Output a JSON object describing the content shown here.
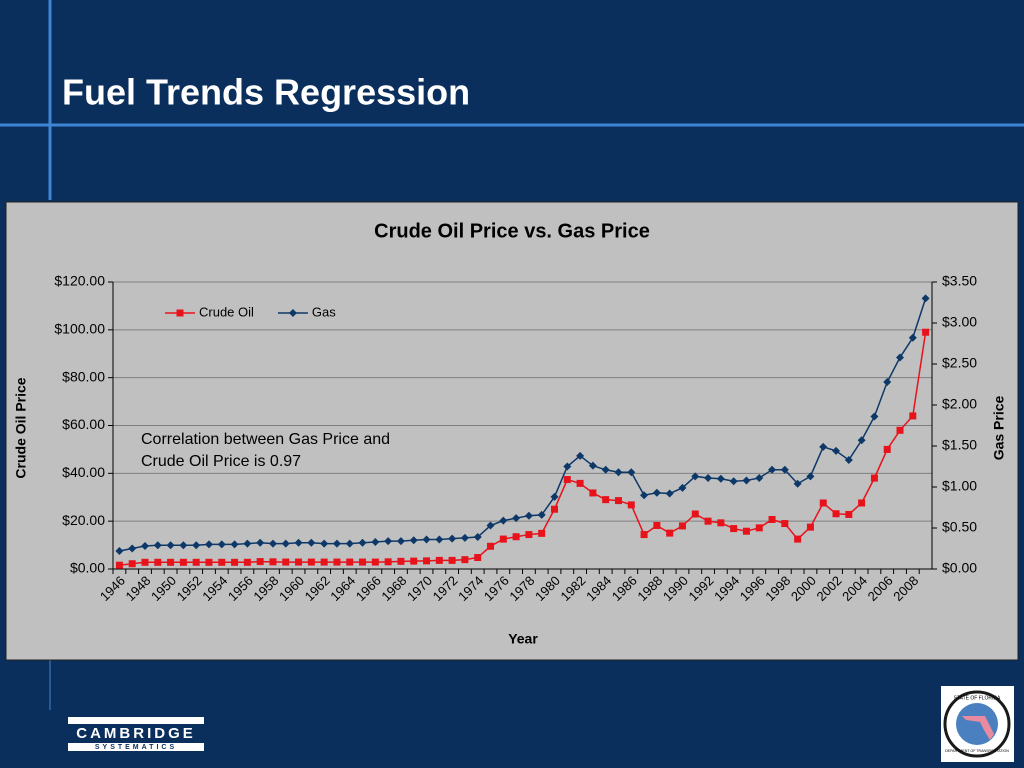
{
  "slide_title": "Fuel Trends Regression",
  "logo": {
    "name": "CAMBRIDGE",
    "subname": "SYSTEMATICS"
  },
  "seal": {
    "top": "STATE OF FLORIDA",
    "bottom": "DEPARTMENT OF TRANSPORTATION"
  },
  "chart_data": {
    "type": "line",
    "title": "Crude Oil Price vs. Gas Price",
    "x_label": "Year",
    "y_label": "Crude Oil Price",
    "y2_label": "Gas Price",
    "annotation": [
      "Correlation between Gas Price and",
      "Crude Oil Price is 0.97"
    ],
    "legend": "top-left",
    "grid": true,
    "categories": [
      "1946",
      null,
      "1948",
      null,
      "1950",
      null,
      "1952",
      null,
      "1954",
      null,
      "1956",
      null,
      "1958",
      null,
      "1960",
      null,
      "1962",
      null,
      "1964",
      null,
      "1966",
      null,
      "1968",
      null,
      "1970",
      null,
      "1972",
      null,
      "1974",
      null,
      "1976",
      null,
      "1978",
      null,
      "1980",
      null,
      "1982",
      null,
      "1984",
      null,
      "1986",
      null,
      "1988",
      null,
      "1990",
      null,
      "1992",
      null,
      "1994",
      null,
      "1996",
      null,
      "1998",
      null,
      "2000",
      null,
      "2002",
      null,
      "2004",
      null,
      "2006",
      null,
      "2008",
      null
    ],
    "series": [
      {
        "name": "Crude Oil",
        "color": "#e8121b",
        "marker": "square",
        "values": [
          1.6,
          2.2,
          2.8,
          2.8,
          2.8,
          2.8,
          2.8,
          2.8,
          2.8,
          2.8,
          2.8,
          3.1,
          3.0,
          2.9,
          2.9,
          2.9,
          2.9,
          2.9,
          2.9,
          2.9,
          2.9,
          3.0,
          3.2,
          3.3,
          3.4,
          3.6,
          3.6,
          3.9,
          4.8,
          9.5,
          12.5,
          13.5,
          14.4,
          14.9,
          25,
          37.4,
          35.8,
          31.8,
          29,
          28.6,
          26.8,
          14.4,
          18.2,
          15,
          18,
          23,
          20,
          19.3,
          16.9,
          15.8,
          17.2,
          20.7,
          19,
          12.5,
          17.5,
          27.6,
          23.1,
          22.8,
          27.6,
          38,
          50,
          58,
          64,
          99
        ]
      },
      {
        "name": "Gas",
        "color": "#0d3868",
        "marker": "diamond",
        "axis": "y2",
        "values": [
          0.22,
          0.25,
          0.28,
          0.29,
          0.29,
          0.29,
          0.29,
          0.3,
          0.3,
          0.3,
          0.31,
          0.32,
          0.31,
          0.31,
          0.32,
          0.32,
          0.31,
          0.31,
          0.31,
          0.32,
          0.33,
          0.34,
          0.34,
          0.35,
          0.36,
          0.36,
          0.37,
          0.38,
          0.39,
          0.53,
          0.59,
          0.62,
          0.65,
          0.66,
          0.88,
          1.25,
          1.38,
          1.26,
          1.21,
          1.18,
          1.18,
          0.9,
          0.93,
          0.92,
          0.99,
          1.13,
          1.11,
          1.1,
          1.07,
          1.08,
          1.11,
          1.21,
          1.21,
          1.04,
          1.13,
          1.49,
          1.44,
          1.33,
          1.57,
          1.86,
          2.28,
          2.58,
          2.82,
          3.3
        ]
      }
    ],
    "ylim": [
      0,
      120
    ],
    "yticks": [
      {
        "value": 0,
        "label": "$0.00"
      },
      {
        "value": 20,
        "label": "$20.00"
      },
      {
        "value": 40,
        "label": "$40.00"
      },
      {
        "value": 60,
        "label": "$60.00"
      },
      {
        "value": 80,
        "label": "$80.00"
      },
      {
        "value": 100,
        "label": "$100.00"
      },
      {
        "value": 120,
        "label": "$120.00"
      }
    ],
    "y2lim": [
      0,
      3.5
    ],
    "y2ticks": [
      {
        "value": 0,
        "label": "$0.00"
      },
      {
        "value": 0.5,
        "label": "$0.50"
      },
      {
        "value": 1,
        "label": "$1.00"
      },
      {
        "value": 1.5,
        "label": "$1.50"
      },
      {
        "value": 2,
        "label": "$2.00"
      },
      {
        "value": 2.5,
        "label": "$2.50"
      },
      {
        "value": 3,
        "label": "$3.00"
      },
      {
        "value": 3.5,
        "label": "$3.50"
      }
    ]
  }
}
